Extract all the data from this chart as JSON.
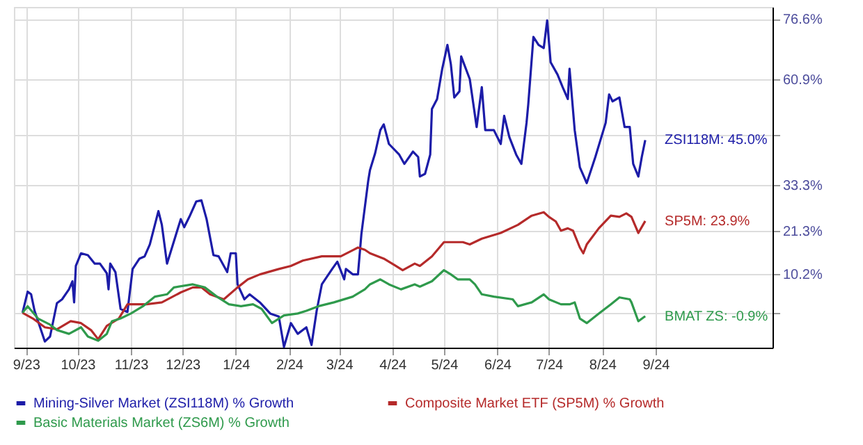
{
  "chart_data": {
    "type": "line",
    "grid": true,
    "legend": "bottom left",
    "line_style": "solid",
    "xlim": [
      "2023-08-25",
      "2024-11-08"
    ],
    "xticks": [
      {
        "value": "2023-09-01",
        "label": "9/23"
      },
      {
        "value": "2023-10-01",
        "label": "10/23"
      },
      {
        "value": "2023-11-01",
        "label": "11/23"
      },
      {
        "value": "2023-12-01",
        "label": "12/23"
      },
      {
        "value": "2024-01-01",
        "label": "1/24"
      },
      {
        "value": "2024-02-01",
        "label": "2/24"
      },
      {
        "value": "2024-03-01",
        "label": "3/24"
      },
      {
        "value": "2024-04-01",
        "label": "4/24"
      },
      {
        "value": "2024-05-01",
        "label": "5/24"
      },
      {
        "value": "2024-06-01",
        "label": "6/24"
      },
      {
        "value": "2024-07-01",
        "label": "7/24"
      },
      {
        "value": "2024-08-01",
        "label": "8/24"
      },
      {
        "value": "2024-09-01",
        "label": "9/24"
      }
    ],
    "ylim": [
      -9.1,
      79.7
    ],
    "yticks": [
      {
        "value": 0,
        "label": null
      },
      {
        "value": 10.2,
        "label": "10.2%"
      },
      {
        "value": 21.3,
        "label": "21.3%"
      },
      {
        "value": 33.3,
        "label": "33.3%"
      },
      {
        "value": 46.5,
        "label": null
      },
      {
        "value": 60.9,
        "label": "60.9%"
      },
      {
        "value": 76.6,
        "label": "76.6%"
      }
    ],
    "series": [
      {
        "name": "Mining-Silver Market (ZSI118M) % Growth",
        "color": "#1c1ca8",
        "x": [
          "2023-08-30",
          "2023-09-02",
          "2023-09-04",
          "2023-09-06",
          "2023-09-12",
          "2023-09-15",
          "2023-09-19",
          "2023-09-22",
          "2023-09-26",
          "2023-09-28",
          "2023-09-29",
          "2023-09-30",
          "2023-10-03",
          "2023-10-07",
          "2023-10-11",
          "2023-10-14",
          "2023-10-18",
          "2023-10-19",
          "2023-10-20",
          "2023-10-23",
          "2023-10-26",
          "2023-10-30",
          "2023-11-02",
          "2023-11-06",
          "2023-11-09",
          "2023-11-12",
          "2023-11-17",
          "2023-11-19",
          "2023-11-22",
          "2023-11-30",
          "2023-12-02",
          "2023-12-05",
          "2023-12-09",
          "2023-12-12",
          "2023-12-15",
          "2023-12-19",
          "2023-12-22",
          "2023-12-27",
          "2023-12-29",
          "2024-01-01",
          "2024-01-02",
          "2024-01-06",
          "2024-01-09",
          "2024-01-15",
          "2024-01-21",
          "2024-01-26",
          "2024-01-29",
          "2024-02-02",
          "2024-02-06",
          "2024-02-11",
          "2024-02-14",
          "2024-02-17",
          "2024-02-20",
          "2024-02-26",
          "2024-02-29",
          "2024-03-04",
          "2024-03-05",
          "2024-03-09",
          "2024-03-12",
          "2024-03-14",
          "2024-03-18",
          "2024-03-19",
          "2024-03-22",
          "2024-03-25",
          "2024-03-27",
          "2024-03-30",
          "2024-04-05",
          "2024-04-08",
          "2024-04-13",
          "2024-04-16",
          "2024-04-17",
          "2024-04-20",
          "2024-04-23",
          "2024-04-24",
          "2024-04-27",
          "2024-04-30",
          "2024-05-03",
          "2024-05-05",
          "2024-05-07",
          "2024-05-10",
          "2024-05-11",
          "2024-05-16",
          "2024-05-20",
          "2024-05-23",
          "2024-05-25",
          "2024-05-30",
          "2024-06-03",
          "2024-06-05",
          "2024-06-08",
          "2024-06-12",
          "2024-06-15",
          "2024-06-18",
          "2024-06-19",
          "2024-06-22",
          "2024-06-25",
          "2024-06-28",
          "2024-06-30",
          "2024-07-02",
          "2024-07-06",
          "2024-07-09",
          "2024-07-12",
          "2024-07-13",
          "2024-07-16",
          "2024-07-19",
          "2024-07-23",
          "2024-07-28",
          "2024-08-03",
          "2024-08-05",
          "2024-08-07",
          "2024-08-11",
          "2024-08-14",
          "2024-08-17",
          "2024-08-19",
          "2024-08-22",
          "2024-08-24",
          "2024-08-26"
        ],
        "values": [
          0,
          5.5,
          4.8,
          0.5,
          -7.5,
          -6.2,
          2.5,
          3.5,
          6.1,
          8.2,
          2.7,
          12.2,
          15.5,
          15.0,
          12.8,
          12.8,
          10.3,
          6.1,
          12.8,
          10.6,
          1.0,
          0.2,
          11.4,
          14.1,
          14.7,
          17.8,
          26.5,
          22.9,
          12.8,
          24.4,
          22.3,
          25.0,
          29.0,
          29.3,
          24.4,
          15.0,
          14.7,
          10.6,
          15.5,
          15.5,
          7.4,
          3.5,
          4.8,
          2.7,
          -0.2,
          -1.0,
          -8.9,
          -2.7,
          -5.5,
          -3.8,
          -8.4,
          0.5,
          7.4,
          11.4,
          13.3,
          8.7,
          11.4,
          10.0,
          10.0,
          20.5,
          34.5,
          37.2,
          41.6,
          47.6,
          49.1,
          44.0,
          41.2,
          38.8,
          42.0,
          40.6,
          35.5,
          36.2,
          41.2,
          53.1,
          55.7,
          63.6,
          69.8,
          64.8,
          56.1,
          57.7,
          66.8,
          60.9,
          48.4,
          58.8,
          47.6,
          47.6,
          44.0,
          51.3,
          45.8,
          41.2,
          38.8,
          49.5,
          54.3,
          71.9,
          69.8,
          69.0,
          76.2,
          65.3,
          62.1,
          58.8,
          55.7,
          63.6,
          47.6,
          37.9,
          33.8,
          40.6,
          49.5,
          56.9,
          55.1,
          56.1,
          48.4,
          48.4,
          38.8,
          35.5,
          40.6,
          45.0
        ]
      },
      {
        "name": "Composite Market ETF (SP5M) % Growth",
        "color": "#b52a2a",
        "x": [
          "2023-08-30",
          "2023-09-05",
          "2023-09-12",
          "2023-09-19",
          "2023-09-27",
          "2023-10-03",
          "2023-10-09",
          "2023-10-13",
          "2023-10-18",
          "2023-10-25",
          "2023-10-30",
          "2023-11-10",
          "2023-11-19",
          "2023-11-30",
          "2023-12-07",
          "2023-12-12",
          "2023-12-17",
          "2023-12-25",
          "2024-01-02",
          "2024-01-08",
          "2024-01-15",
          "2024-01-26",
          "2024-02-02",
          "2024-02-09",
          "2024-02-20",
          "2024-03-02",
          "2024-03-12",
          "2024-03-16",
          "2024-03-19",
          "2024-03-27",
          "2024-04-03",
          "2024-04-07",
          "2024-04-14",
          "2024-04-17",
          "2024-04-24",
          "2024-05-01",
          "2024-05-12",
          "2024-05-16",
          "2024-05-23",
          "2024-06-03",
          "2024-06-13",
          "2024-06-21",
          "2024-06-28",
          "2024-07-01",
          "2024-07-05",
          "2024-07-08",
          "2024-07-12",
          "2024-07-15",
          "2024-07-19",
          "2024-07-21",
          "2024-07-23",
          "2024-07-30",
          "2024-08-06",
          "2024-08-11",
          "2024-08-15",
          "2024-08-18",
          "2024-08-22",
          "2024-08-26"
        ],
        "values": [
          0,
          -1.5,
          -3.8,
          -4.3,
          -2.2,
          -2.7,
          -4.6,
          -6.9,
          -3.4,
          -1.5,
          2.2,
          2.2,
          2.7,
          5.3,
          6.6,
          6.6,
          4.8,
          3.5,
          6.6,
          8.7,
          10.0,
          11.4,
          12.2,
          13.6,
          14.7,
          14.7,
          17.0,
          16.4,
          15.5,
          14.1,
          12.2,
          11.1,
          12.8,
          12.2,
          14.7,
          18.4,
          18.4,
          17.8,
          19.3,
          20.8,
          22.9,
          25.3,
          26.2,
          25.0,
          23.8,
          21.4,
          22.0,
          21.4,
          17.0,
          15.5,
          17.8,
          22.0,
          25.3,
          25.0,
          25.9,
          25.0,
          20.8,
          23.9
        ]
      },
      {
        "name": "Basic Materials Market (ZS6M) % Growth",
        "color": "#2f9a4c",
        "x": [
          "2023-08-30",
          "2023-09-02",
          "2023-09-08",
          "2023-09-15",
          "2023-09-19",
          "2023-09-26",
          "2023-10-03",
          "2023-10-07",
          "2023-10-13",
          "2023-10-18",
          "2023-10-21",
          "2023-10-26",
          "2023-11-01",
          "2023-11-08",
          "2023-11-15",
          "2023-11-22",
          "2023-11-26",
          "2023-12-07",
          "2023-12-14",
          "2023-12-21",
          "2023-12-28",
          "2024-01-04",
          "2024-01-11",
          "2024-01-16",
          "2024-01-22",
          "2024-01-29",
          "2024-02-06",
          "2024-02-11",
          "2024-02-18",
          "2024-02-27",
          "2024-03-09",
          "2024-03-16",
          "2024-03-19",
          "2024-03-25",
          "2024-03-30",
          "2024-04-06",
          "2024-04-14",
          "2024-04-17",
          "2024-04-24",
          "2024-05-01",
          "2024-05-05",
          "2024-05-09",
          "2024-05-16",
          "2024-05-19",
          "2024-05-23",
          "2024-05-30",
          "2024-06-10",
          "2024-06-13",
          "2024-06-21",
          "2024-06-28",
          "2024-07-01",
          "2024-07-08",
          "2024-07-13",
          "2024-07-16",
          "2024-07-19",
          "2024-07-23",
          "2024-07-30",
          "2024-08-06",
          "2024-08-11",
          "2024-08-17",
          "2024-08-18",
          "2024-08-22",
          "2024-08-26"
        ],
        "values": [
          0,
          1.7,
          -1.5,
          -3.1,
          -4.5,
          -5.5,
          -3.8,
          -6.2,
          -7.3,
          -5.5,
          -2.2,
          -1.5,
          -0.2,
          1.7,
          4.2,
          4.8,
          6.6,
          7.4,
          6.6,
          4.2,
          2.2,
          1.7,
          2.2,
          1.0,
          -2.7,
          -0.7,
          -0.2,
          0.5,
          1.7,
          2.7,
          4.2,
          6.1,
          7.4,
          8.7,
          7.4,
          6.1,
          7.4,
          6.8,
          8.2,
          11.1,
          10.0,
          8.7,
          8.7,
          7.4,
          4.8,
          4.2,
          3.5,
          1.7,
          2.7,
          4.8,
          3.5,
          2.2,
          2.2,
          2.7,
          -1.5,
          -2.7,
          -0.2,
          2.2,
          4.0,
          3.5,
          2.7,
          -2.2,
          -0.9
        ]
      }
    ],
    "annotations": [
      {
        "text": "ZSI118M: 45.0%",
        "x": "2024-08-26",
        "y": 45.0
      },
      {
        "text": "SP5M: 23.9%",
        "x": "2024-08-26",
        "y": 23.9
      },
      {
        "text": "BMAT ZS: -0.9%",
        "x": "2024-08-26",
        "y": -0.9
      }
    ]
  }
}
